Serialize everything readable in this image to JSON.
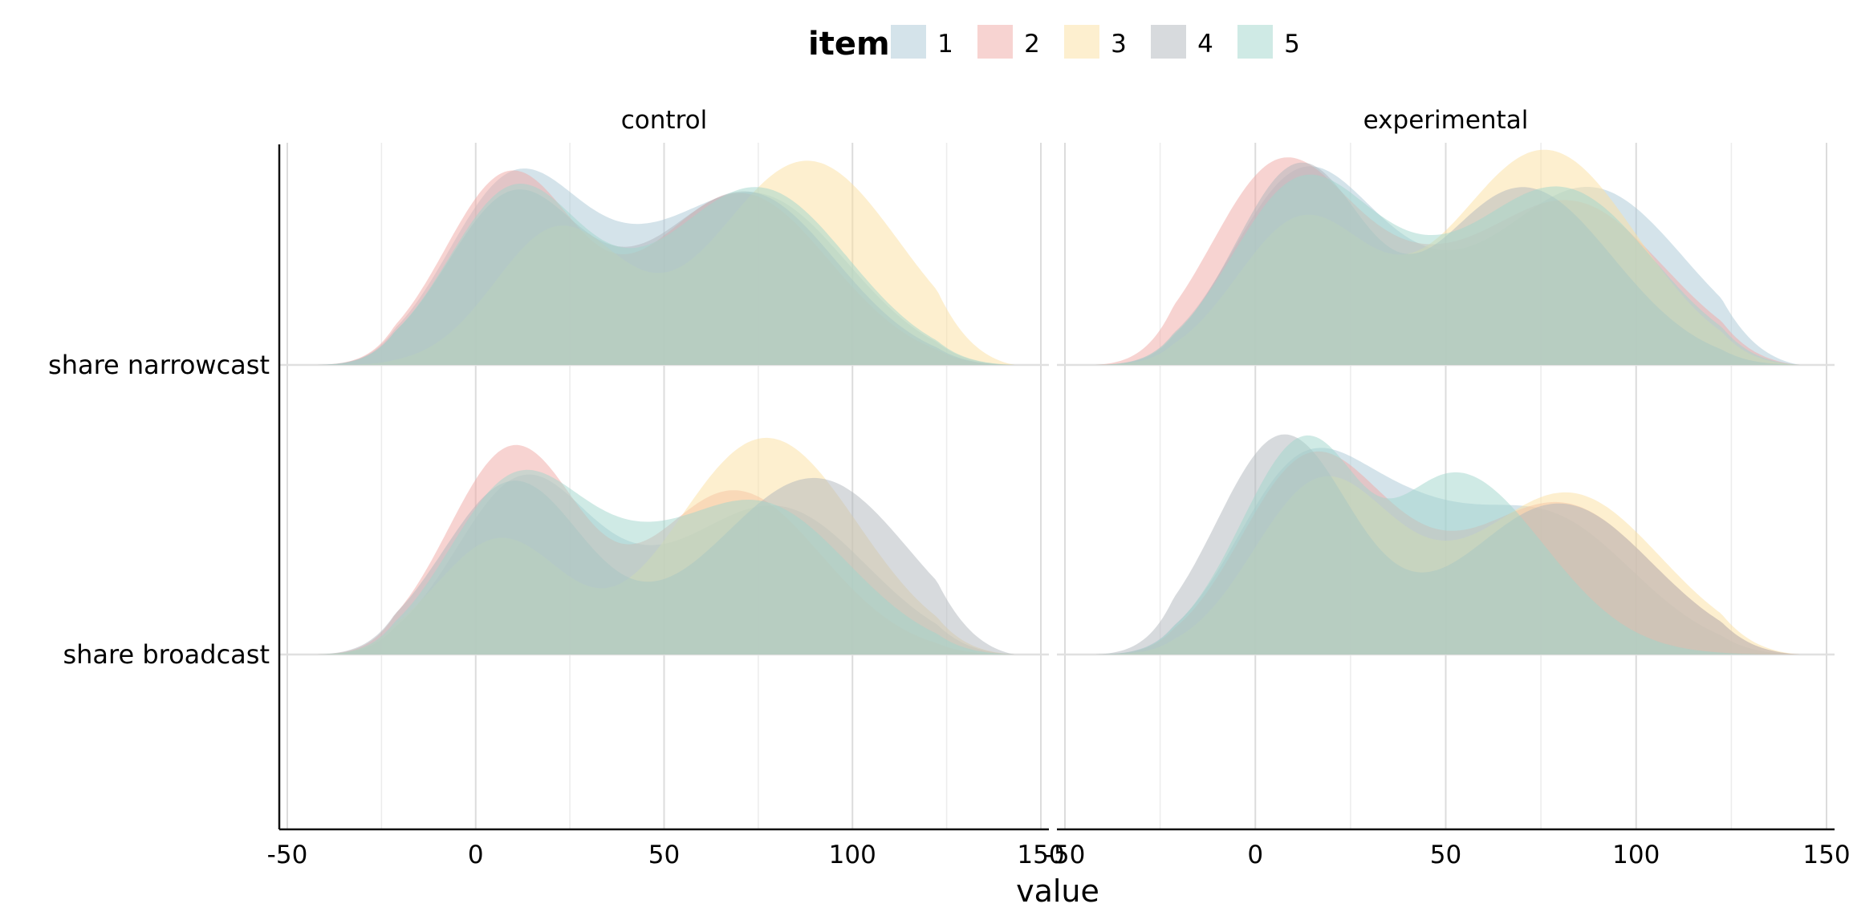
{
  "chart_data": {
    "type": "area",
    "subtype": "ridgeline density",
    "xlabel": "value",
    "ylabel": "",
    "xlim": [
      -50,
      150
    ],
    "x_ticks": [
      -50,
      0,
      50,
      100,
      150
    ],
    "x_tick_labels": [
      "-50",
      "0",
      "50",
      "100",
      "150"
    ],
    "rows": [
      "share narrowcast",
      "share broadcast"
    ],
    "panels": [
      "control",
      "experimental"
    ],
    "legend": {
      "title": "item",
      "position": "top",
      "entries": [
        "1",
        "2",
        "3",
        "4",
        "5"
      ],
      "colors": [
        "#A9C7D6",
        "#F0A7A3",
        "#FCDF9F",
        "#B0B5BC",
        "#9FD6CB"
      ]
    },
    "grid": "vertical major and minor gridlines",
    "fill_opacity": 0.5,
    "x_support": [
      -42,
      143
    ],
    "series": [
      {
        "panel": "control",
        "row": "share narrowcast",
        "item": "1",
        "peaks": [
          [
            10,
            0.85
          ],
          [
            75,
            0.78
          ]
        ],
        "dip": [
          40,
          0.66
        ]
      },
      {
        "panel": "control",
        "row": "share narrowcast",
        "item": "2",
        "peaks": [
          [
            9,
            0.88
          ],
          [
            70,
            0.8
          ]
        ],
        "dip": [
          33,
          0.55
        ]
      },
      {
        "panel": "control",
        "row": "share narrowcast",
        "item": "3",
        "peaks": [
          [
            22,
            0.63
          ],
          [
            88,
            0.95
          ]
        ],
        "dip": [
          42,
          0.46
        ]
      },
      {
        "panel": "control",
        "row": "share narrowcast",
        "item": "4",
        "peaks": [
          [
            10,
            0.78
          ],
          [
            72,
            0.8
          ]
        ],
        "dip": [
          40,
          0.55
        ]
      },
      {
        "panel": "control",
        "row": "share narrowcast",
        "item": "5",
        "peaks": [
          [
            10,
            0.8
          ],
          [
            75,
            0.82
          ]
        ],
        "dip": [
          38,
          0.55
        ]
      },
      {
        "panel": "experimental",
        "row": "share narrowcast",
        "item": "1",
        "peaks": [
          [
            10,
            0.76
          ],
          [
            88,
            0.82
          ]
        ],
        "dip": [
          35,
          0.66
        ]
      },
      {
        "panel": "experimental",
        "row": "share narrowcast",
        "item": "2",
        "peaks": [
          [
            5,
            0.85
          ],
          [
            83,
            0.75
          ]
        ],
        "dip": [
          35,
          0.62
        ]
      },
      {
        "panel": "experimental",
        "row": "share narrowcast",
        "item": "3",
        "peaks": [
          [
            12,
            0.66
          ],
          [
            76,
            1.0
          ]
        ],
        "dip": [
          35,
          0.52
        ]
      },
      {
        "panel": "experimental",
        "row": "share narrowcast",
        "item": "4",
        "peaks": [
          [
            12,
            0.93
          ],
          [
            70,
            0.83
          ]
        ],
        "dip": [
          35,
          0.55
        ]
      },
      {
        "panel": "experimental",
        "row": "share narrowcast",
        "item": "5",
        "peaks": [
          [
            10,
            0.76
          ],
          [
            80,
            0.82
          ]
        ],
        "dip": [
          35,
          0.67
        ]
      },
      {
        "panel": "control",
        "row": "share broadcast",
        "item": "1",
        "peaks": [
          [
            12,
            0.79
          ],
          [
            80,
            0.68
          ]
        ],
        "dip": [
          42,
          0.52
        ]
      },
      {
        "panel": "control",
        "row": "share broadcast",
        "item": "2",
        "peaks": [
          [
            10,
            0.95
          ],
          [
            68,
            0.77
          ]
        ],
        "dip": [
          38,
          0.52
        ]
      },
      {
        "panel": "control",
        "row": "share broadcast",
        "item": "3",
        "peaks": [
          [
            7,
            0.55
          ],
          [
            77,
            1.01
          ]
        ],
        "dip": [
          32,
          0.31
        ]
      },
      {
        "panel": "control",
        "row": "share broadcast",
        "item": "4",
        "peaks": [
          [
            10,
            0.8
          ],
          [
            92,
            0.78
          ]
        ],
        "dip": [
          60,
          0.46
        ]
      },
      {
        "panel": "control",
        "row": "share broadcast",
        "item": "5",
        "peaks": [
          [
            10,
            0.78
          ],
          [
            75,
            0.7
          ]
        ],
        "dip": [
          38,
          0.64
        ]
      },
      {
        "panel": "experimental",
        "row": "share broadcast",
        "item": "1",
        "peaks": [
          [
            12,
            0.85
          ],
          [
            75,
            0.65
          ]
        ],
        "dip": [
          40,
          0.78
        ]
      },
      {
        "panel": "experimental",
        "row": "share broadcast",
        "item": "2",
        "peaks": [
          [
            12,
            0.8
          ],
          [
            80,
            0.7
          ]
        ],
        "dip": [
          35,
          0.72
        ]
      },
      {
        "panel": "experimental",
        "row": "share broadcast",
        "item": "3",
        "peaks": [
          [
            15,
            0.7
          ],
          [
            82,
            0.75
          ]
        ],
        "dip": [
          35,
          0.66
        ]
      },
      {
        "panel": "experimental",
        "row": "share broadcast",
        "item": "4",
        "peaks": [
          [
            7,
            1.0
          ],
          [
            80,
            0.7
          ]
        ],
        "dip": [
          35,
          0.45
        ]
      },
      {
        "panel": "experimental",
        "row": "share broadcast",
        "item": "5",
        "peaks": [
          [
            12,
            0.88
          ],
          [
            53,
            0.83
          ]
        ],
        "dip": [
          32,
          0.74
        ]
      }
    ]
  }
}
